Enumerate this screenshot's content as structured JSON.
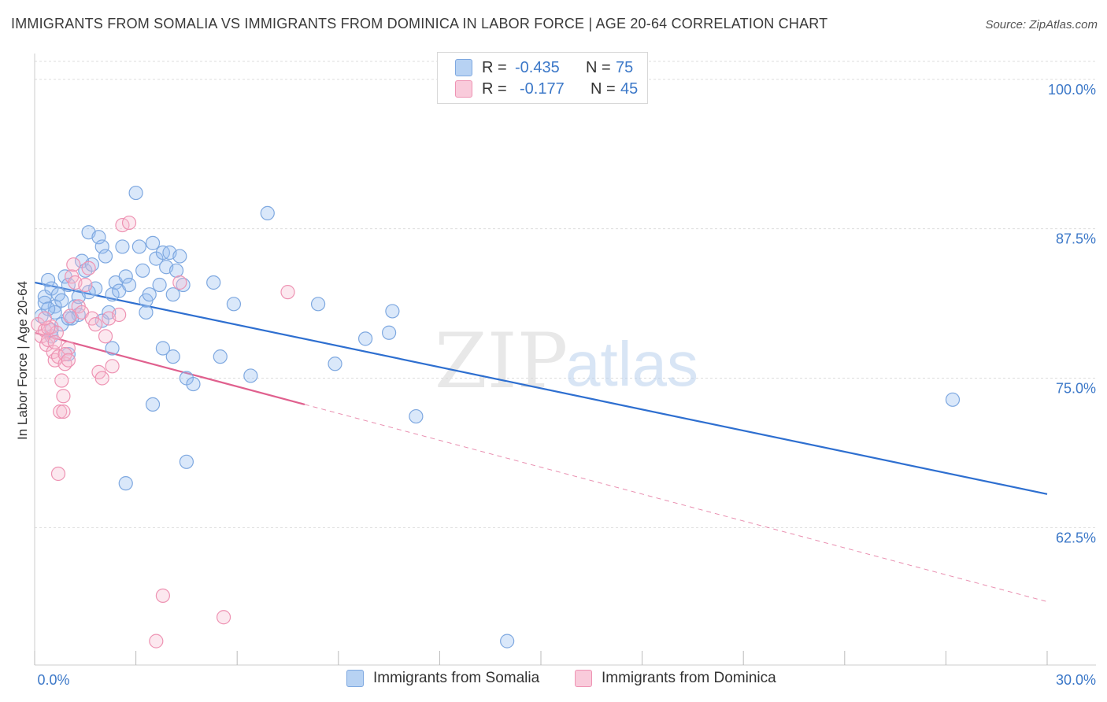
{
  "title": "IMMIGRANTS FROM SOMALIA VS IMMIGRANTS FROM DOMINICA IN LABOR FORCE | AGE 20-64 CORRELATION CHART",
  "source": "Source: ZipAtlas.com",
  "watermark": {
    "zip": "ZIP",
    "atlas": "atlas"
  },
  "legend_top": [
    {
      "r_label": "R =",
      "r_value": "-0.435",
      "n_label": "N =",
      "n_value": "75",
      "color": "#a9c8f0",
      "border": "#7ea8e0"
    },
    {
      "r_label": "R =",
      "r_value": "-0.177",
      "n_label": "N =",
      "n_value": "45",
      "color": "#f7bcd0",
      "border": "#ee93b3"
    }
  ],
  "chart_data": {
    "type": "scatter",
    "title": "IMMIGRANTS FROM SOMALIA VS IMMIGRANTS FROM DOMINICA IN LABOR FORCE | AGE 20-64 CORRELATION CHART",
    "xlabel": "",
    "ylabel": "In Labor Force | Age 20-64",
    "xlim": [
      0,
      30
    ],
    "ylim": [
      51,
      101.5
    ],
    "x_tick_labels": [
      "0.0%",
      "30.0%"
    ],
    "y_ticks": [
      62.5,
      75.0,
      87.5,
      100.0
    ],
    "y_tick_labels": [
      "62.5%",
      "75.0%",
      "87.5%",
      "100.0%"
    ],
    "grid": true,
    "legend_position": "bottom",
    "series": [
      {
        "name": "Immigrants from Somalia",
        "color": "#7ea8e0",
        "fill": "rgba(150,190,240,0.35)",
        "line_color": "#2e6fd0",
        "trend": {
          "x": [
            0,
            30
          ],
          "y": [
            83.0,
            65.3
          ],
          "dashed_from": null
        },
        "points": [
          [
            0.2,
            80.2
          ],
          [
            0.3,
            81.8
          ],
          [
            0.4,
            83.2
          ],
          [
            0.5,
            82.5
          ],
          [
            0.6,
            81.0
          ],
          [
            0.7,
            82.0
          ],
          [
            0.8,
            79.5
          ],
          [
            0.9,
            83.5
          ],
          [
            1.0,
            82.8
          ],
          [
            1.1,
            80.0
          ],
          [
            1.2,
            81.0
          ],
          [
            1.3,
            81.8
          ],
          [
            1.4,
            84.8
          ],
          [
            1.5,
            84.0
          ],
          [
            1.6,
            87.2
          ],
          [
            1.7,
            84.5
          ],
          [
            1.8,
            82.5
          ],
          [
            1.9,
            86.8
          ],
          [
            2.0,
            86.0
          ],
          [
            2.1,
            85.2
          ],
          [
            2.2,
            80.5
          ],
          [
            2.3,
            82.0
          ],
          [
            2.4,
            83.0
          ],
          [
            2.5,
            82.3
          ],
          [
            2.6,
            86.0
          ],
          [
            2.7,
            83.5
          ],
          [
            2.8,
            82.8
          ],
          [
            3.0,
            90.5
          ],
          [
            3.1,
            86.0
          ],
          [
            3.2,
            84.0
          ],
          [
            3.3,
            81.5
          ],
          [
            3.4,
            82.0
          ],
          [
            3.5,
            86.3
          ],
          [
            3.6,
            85.0
          ],
          [
            3.7,
            82.8
          ],
          [
            3.8,
            85.5
          ],
          [
            3.9,
            84.3
          ],
          [
            4.0,
            85.5
          ],
          [
            4.1,
            82.0
          ],
          [
            4.2,
            84.0
          ],
          [
            4.3,
            85.2
          ],
          [
            4.4,
            82.8
          ],
          [
            0.5,
            79.0
          ],
          [
            0.6,
            80.5
          ],
          [
            1.0,
            77.0
          ],
          [
            2.3,
            77.5
          ],
          [
            3.5,
            72.8
          ],
          [
            3.8,
            77.5
          ],
          [
            4.1,
            76.8
          ],
          [
            4.5,
            75.0
          ],
          [
            4.7,
            74.5
          ],
          [
            5.3,
            83.0
          ],
          [
            5.5,
            76.8
          ],
          [
            5.9,
            81.2
          ],
          [
            6.4,
            75.2
          ],
          [
            6.9,
            88.8
          ],
          [
            8.4,
            81.2
          ],
          [
            8.9,
            76.2
          ],
          [
            9.8,
            78.3
          ],
          [
            10.5,
            78.8
          ],
          [
            10.6,
            80.6
          ],
          [
            11.3,
            71.8
          ],
          [
            4.5,
            68.0
          ],
          [
            2.7,
            66.2
          ],
          [
            14.0,
            53.0
          ],
          [
            27.2,
            73.2
          ],
          [
            0.3,
            81.3
          ],
          [
            0.4,
            80.8
          ],
          [
            0.8,
            81.5
          ],
          [
            1.3,
            80.3
          ],
          [
            1.6,
            82.2
          ],
          [
            2.0,
            79.8
          ],
          [
            3.3,
            80.5
          ],
          [
            0.5,
            78.5
          ],
          [
            1.0,
            80.0
          ]
        ]
      },
      {
        "name": "Immigrants from Dominica",
        "color": "#ee93b3",
        "fill": "rgba(247,188,208,0.35)",
        "line_color": "#e0608e",
        "trend": {
          "x": [
            0,
            30
          ],
          "y": [
            78.8,
            56.3
          ],
          "dashed_from": 8.0
        },
        "points": [
          [
            0.1,
            79.5
          ],
          [
            0.2,
            78.5
          ],
          [
            0.3,
            79.0
          ],
          [
            0.35,
            77.8
          ],
          [
            0.4,
            78.2
          ],
          [
            0.5,
            79.3
          ],
          [
            0.55,
            77.2
          ],
          [
            0.6,
            76.5
          ],
          [
            0.65,
            78.8
          ],
          [
            0.7,
            76.8
          ],
          [
            0.75,
            72.2
          ],
          [
            0.8,
            74.8
          ],
          [
            0.85,
            73.5
          ],
          [
            0.9,
            76.2
          ],
          [
            1.0,
            77.5
          ],
          [
            1.05,
            80.2
          ],
          [
            1.1,
            83.5
          ],
          [
            1.15,
            84.5
          ],
          [
            1.2,
            83.0
          ],
          [
            1.3,
            81.0
          ],
          [
            1.4,
            80.5
          ],
          [
            1.5,
            82.8
          ],
          [
            1.6,
            84.2
          ],
          [
            1.7,
            80.0
          ],
          [
            1.8,
            79.5
          ],
          [
            1.9,
            75.5
          ],
          [
            2.0,
            75.0
          ],
          [
            2.1,
            78.5
          ],
          [
            2.2,
            80.0
          ],
          [
            2.3,
            76.0
          ],
          [
            2.5,
            80.3
          ],
          [
            2.6,
            87.8
          ],
          [
            2.8,
            88.0
          ],
          [
            3.6,
            53.0
          ],
          [
            3.8,
            56.8
          ],
          [
            4.3,
            83.0
          ],
          [
            5.6,
            55.0
          ],
          [
            7.5,
            82.2
          ],
          [
            0.7,
            67.0
          ],
          [
            0.85,
            72.2
          ],
          [
            0.9,
            77.0
          ],
          [
            1.0,
            76.5
          ],
          [
            0.4,
            79.2
          ],
          [
            0.3,
            80.0
          ],
          [
            0.6,
            78.0
          ]
        ]
      }
    ]
  }
}
